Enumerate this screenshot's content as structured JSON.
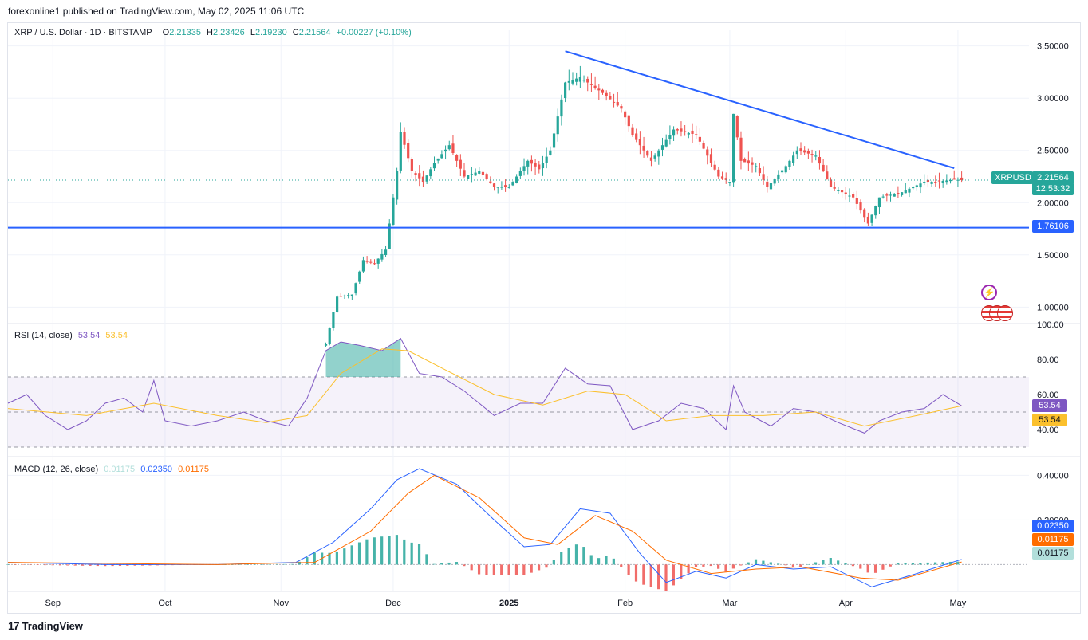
{
  "header": {
    "publisher": "forexonline1 published on TradingView.com, May 02, 2025 11:06 UTC"
  },
  "legend": {
    "symbol": "XRP / U.S. Dollar · 1D · BITSTAMP",
    "o_label": "O",
    "o": "2.21335",
    "h_label": "H",
    "h": "2.23426",
    "l_label": "L",
    "l": "2.19230",
    "c_label": "C",
    "c": "2.21564",
    "change": "+0.00227 (+0.10%)"
  },
  "price_badges": {
    "symbol": "XRPUSD",
    "last": "2.21564",
    "countdown": "12:53:32",
    "support": "1.76106"
  },
  "rsi_legend": {
    "label": "RSI (14, close)",
    "v1": "53.54",
    "v2": "53.54"
  },
  "rsi_badges": {
    "rsi": "53.54",
    "ma": "53.54"
  },
  "macd_legend": {
    "label": "MACD (12, 26, close)",
    "hist": "0.01175",
    "macd": "0.02350",
    "signal": "0.01175"
  },
  "macd_badges": {
    "macd": "0.02350",
    "signal": "0.01175",
    "hist": "0.01175"
  },
  "footer": {
    "brand": "TradingView"
  },
  "colors": {
    "up": "#26a69a",
    "down": "#ef5350",
    "trend": "#2962ff",
    "rsi": "#7e57c2",
    "rsi_ma": "#fbc02d",
    "macd": "#2962ff",
    "signal": "#ff6d00"
  },
  "chart_data": {
    "type": "candlestick",
    "price_axis": {
      "ticks": [
        "3.50000",
        "3.00000",
        "2.50000",
        "2.00000",
        "1.50000",
        "1.00000"
      ],
      "ylim": [
        0.85,
        3.65
      ]
    },
    "time_axis": {
      "ticks": [
        "Sep",
        "Oct",
        "Nov",
        "Dec",
        "2025",
        "Feb",
        "Mar",
        "Apr",
        "May"
      ]
    },
    "support_level": 1.76106,
    "trendline": {
      "from": [
        "2025-01-16",
        3.45
      ],
      "to": [
        "2025-04-30",
        2.33
      ]
    },
    "price_path": [
      [
        "2024-11-13",
        0.65
      ],
      [
        "2024-11-16",
        1.1
      ],
      [
        "2024-11-20",
        1.12
      ],
      [
        "2024-11-23",
        1.45
      ],
      [
        "2024-11-26",
        1.42
      ],
      [
        "2024-11-29",
        1.55
      ],
      [
        "2024-12-02",
        2.3
      ],
      [
        "2024-12-03",
        2.68
      ],
      [
        "2024-12-06",
        2.3
      ],
      [
        "2024-12-09",
        2.2
      ],
      [
        "2024-12-12",
        2.38
      ],
      [
        "2024-12-16",
        2.55
      ],
      [
        "2024-12-20",
        2.25
      ],
      [
        "2024-12-24",
        2.3
      ],
      [
        "2024-12-28",
        2.15
      ],
      [
        "2025-01-01",
        2.15
      ],
      [
        "2025-01-06",
        2.4
      ],
      [
        "2025-01-09",
        2.32
      ],
      [
        "2025-01-12",
        2.5
      ],
      [
        "2025-01-16",
        3.15
      ],
      [
        "2025-01-20",
        3.2
      ],
      [
        "2025-01-26",
        3.05
      ],
      [
        "2025-01-31",
        2.9
      ],
      [
        "2025-02-03",
        2.65
      ],
      [
        "2025-02-08",
        2.4
      ],
      [
        "2025-02-14",
        2.7
      ],
      [
        "2025-02-20",
        2.65
      ],
      [
        "2025-02-26",
        2.25
      ],
      [
        "2025-03-01",
        2.2
      ],
      [
        "2025-03-02",
        2.85
      ],
      [
        "2025-03-04",
        2.4
      ],
      [
        "2025-03-08",
        2.35
      ],
      [
        "2025-03-11",
        2.15
      ],
      [
        "2025-03-16",
        2.35
      ],
      [
        "2025-03-19",
        2.5
      ],
      [
        "2025-03-24",
        2.45
      ],
      [
        "2025-03-28",
        2.15
      ],
      [
        "2025-04-03",
        2.05
      ],
      [
        "2025-04-07",
        1.8
      ],
      [
        "2025-04-10",
        2.05
      ],
      [
        "2025-04-16",
        2.1
      ],
      [
        "2025-04-22",
        2.2
      ],
      [
        "2025-04-25",
        2.2
      ],
      [
        "2025-04-30",
        2.22
      ],
      [
        "2025-05-02",
        2.21564
      ]
    ],
    "rsi": {
      "ticks": [
        "100.00",
        "80.00",
        "60.00",
        "40.00"
      ],
      "ylim": [
        25,
        100
      ],
      "band": [
        30,
        70
      ],
      "series": [
        [
          "2024-08-20",
          55
        ],
        [
          "2024-08-25",
          60
        ],
        [
          "2024-08-30",
          48
        ],
        [
          "2024-09-05",
          40
        ],
        [
          "2024-09-10",
          45
        ],
        [
          "2024-09-15",
          55
        ],
        [
          "2024-09-20",
          58
        ],
        [
          "2024-09-25",
          50
        ],
        [
          "2024-09-28",
          68
        ],
        [
          "2024-10-01",
          45
        ],
        [
          "2024-10-08",
          42
        ],
        [
          "2024-10-15",
          45
        ],
        [
          "2024-10-22",
          50
        ],
        [
          "2024-10-28",
          45
        ],
        [
          "2024-11-03",
          42
        ],
        [
          "2024-11-08",
          58
        ],
        [
          "2024-11-13",
          85
        ],
        [
          "2024-11-17",
          90
        ],
        [
          "2024-11-22",
          88
        ],
        [
          "2024-11-28",
          85
        ],
        [
          "2024-12-03",
          92
        ],
        [
          "2024-12-08",
          72
        ],
        [
          "2024-12-14",
          70
        ],
        [
          "2024-12-20",
          62
        ],
        [
          "2024-12-28",
          48
        ],
        [
          "2025-01-04",
          55
        ],
        [
          "2025-01-10",
          55
        ],
        [
          "2025-01-16",
          75
        ],
        [
          "2025-01-22",
          66
        ],
        [
          "2025-01-28",
          65
        ],
        [
          "2025-02-03",
          40
        ],
        [
          "2025-02-10",
          45
        ],
        [
          "2025-02-16",
          55
        ],
        [
          "2025-02-22",
          52
        ],
        [
          "2025-02-28",
          40
        ],
        [
          "2025-03-02",
          65
        ],
        [
          "2025-03-05",
          50
        ],
        [
          "2025-03-12",
          42
        ],
        [
          "2025-03-18",
          52
        ],
        [
          "2025-03-24",
          50
        ],
        [
          "2025-03-30",
          44
        ],
        [
          "2025-04-06",
          38
        ],
        [
          "2025-04-10",
          45
        ],
        [
          "2025-04-16",
          50
        ],
        [
          "2025-04-22",
          52
        ],
        [
          "2025-04-27",
          60
        ],
        [
          "2025-05-02",
          53.54
        ]
      ],
      "ma": [
        [
          "2024-08-20",
          52
        ],
        [
          "2024-09-10",
          48
        ],
        [
          "2024-09-28",
          55
        ],
        [
          "2024-10-15",
          48
        ],
        [
          "2024-10-28",
          44
        ],
        [
          "2024-11-08",
          48
        ],
        [
          "2024-11-17",
          72
        ],
        [
          "2024-11-28",
          86
        ],
        [
          "2024-12-05",
          85
        ],
        [
          "2024-12-15",
          74
        ],
        [
          "2024-12-28",
          60
        ],
        [
          "2025-01-10",
          54
        ],
        [
          "2025-01-22",
          62
        ],
        [
          "2025-02-01",
          60
        ],
        [
          "2025-02-12",
          45
        ],
        [
          "2025-02-24",
          48
        ],
        [
          "2025-03-10",
          48
        ],
        [
          "2025-03-24",
          50
        ],
        [
          "2025-04-06",
          42
        ],
        [
          "2025-04-20",
          48
        ],
        [
          "2025-05-02",
          53.54
        ]
      ]
    },
    "macd": {
      "ticks": [
        "0.40000",
        "0.20000"
      ],
      "ylim": [
        -0.12,
        0.48
      ],
      "macd": [
        [
          "2024-08-20",
          0.01
        ],
        [
          "2024-09-15",
          0.0
        ],
        [
          "2024-10-15",
          0.0
        ],
        [
          "2024-11-05",
          0.01
        ],
        [
          "2024-11-15",
          0.1
        ],
        [
          "2024-11-25",
          0.25
        ],
        [
          "2024-12-02",
          0.38
        ],
        [
          "2024-12-08",
          0.43
        ],
        [
          "2024-12-18",
          0.36
        ],
        [
          "2024-12-28",
          0.2
        ],
        [
          "2025-01-05",
          0.08
        ],
        [
          "2025-01-12",
          0.09
        ],
        [
          "2025-01-20",
          0.25
        ],
        [
          "2025-01-28",
          0.23
        ],
        [
          "2025-02-05",
          0.05
        ],
        [
          "2025-02-12",
          -0.08
        ],
        [
          "2025-02-20",
          -0.03
        ],
        [
          "2025-02-28",
          -0.06
        ],
        [
          "2025-03-08",
          0.0
        ],
        [
          "2025-03-18",
          -0.02
        ],
        [
          "2025-03-28",
          -0.01
        ],
        [
          "2025-04-08",
          -0.1
        ],
        [
          "2025-04-20",
          -0.04
        ],
        [
          "2025-05-02",
          0.0235
        ]
      ],
      "signal": [
        [
          "2024-08-20",
          0.01
        ],
        [
          "2024-10-15",
          0.0
        ],
        [
          "2024-11-10",
          0.01
        ],
        [
          "2024-11-25",
          0.15
        ],
        [
          "2024-12-05",
          0.32
        ],
        [
          "2024-12-12",
          0.4
        ],
        [
          "2024-12-24",
          0.3
        ],
        [
          "2025-01-05",
          0.12
        ],
        [
          "2025-01-14",
          0.09
        ],
        [
          "2025-01-24",
          0.22
        ],
        [
          "2025-02-03",
          0.15
        ],
        [
          "2025-02-12",
          0.02
        ],
        [
          "2025-02-24",
          -0.04
        ],
        [
          "2025-03-08",
          -0.02
        ],
        [
          "2025-03-20",
          -0.01
        ],
        [
          "2025-04-05",
          -0.06
        ],
        [
          "2025-04-15",
          -0.07
        ],
        [
          "2025-05-02",
          0.01175
        ]
      ],
      "histogram_note": "bars = macd - signal"
    }
  }
}
